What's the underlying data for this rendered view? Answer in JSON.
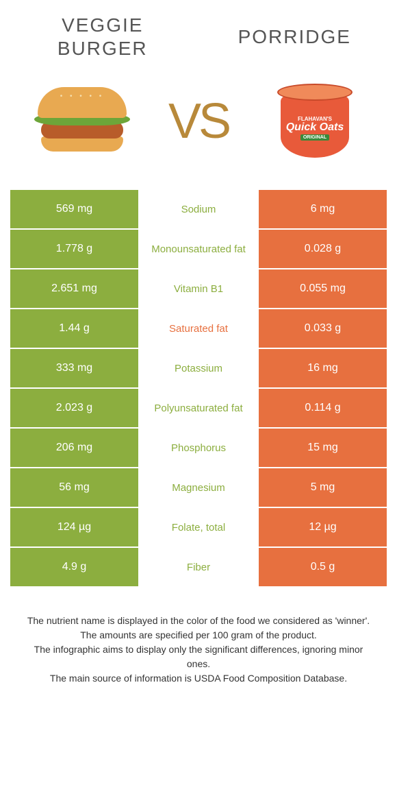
{
  "colors": {
    "left_food": "#8cae3f",
    "right_food": "#e7703f",
    "mid_bg": "#ffffff",
    "title_color": "#606060",
    "vs_color": "#b8893a",
    "footer_color": "#333333"
  },
  "left_title": "VEGGIE BURGER",
  "right_title": "PORRIDGE",
  "vs_label": "VS",
  "oats_brand": "FLAHAVAN'S",
  "oats_name": "Quick Oats",
  "oats_sub": "ORIGINAL",
  "rows": [
    {
      "left": "569 mg",
      "label": "Sodium",
      "right": "6 mg",
      "winner": "left"
    },
    {
      "left": "1.778 g",
      "label": "Monounsaturated fat",
      "right": "0.028 g",
      "winner": "left"
    },
    {
      "left": "2.651 mg",
      "label": "Vitamin B1",
      "right": "0.055 mg",
      "winner": "left"
    },
    {
      "left": "1.44 g",
      "label": "Saturated fat",
      "right": "0.033 g",
      "winner": "right"
    },
    {
      "left": "333 mg",
      "label": "Potassium",
      "right": "16 mg",
      "winner": "left"
    },
    {
      "left": "2.023 g",
      "label": "Polyunsaturated fat",
      "right": "0.114 g",
      "winner": "left"
    },
    {
      "left": "206 mg",
      "label": "Phosphorus",
      "right": "15 mg",
      "winner": "left"
    },
    {
      "left": "56 mg",
      "label": "Magnesium",
      "right": "5 mg",
      "winner": "left"
    },
    {
      "left": "124 µg",
      "label": "Folate, total",
      "right": "12 µg",
      "winner": "left"
    },
    {
      "left": "4.9 g",
      "label": "Fiber",
      "right": "0.5 g",
      "winner": "left"
    }
  ],
  "footer_lines": [
    "The nutrient name is displayed in the color of the food we considered as 'winner'.",
    "The amounts are specified per 100 gram of the product.",
    "The infographic aims to display only the significant differences, ignoring minor ones.",
    "The main source of information is USDA Food Composition Database."
  ]
}
